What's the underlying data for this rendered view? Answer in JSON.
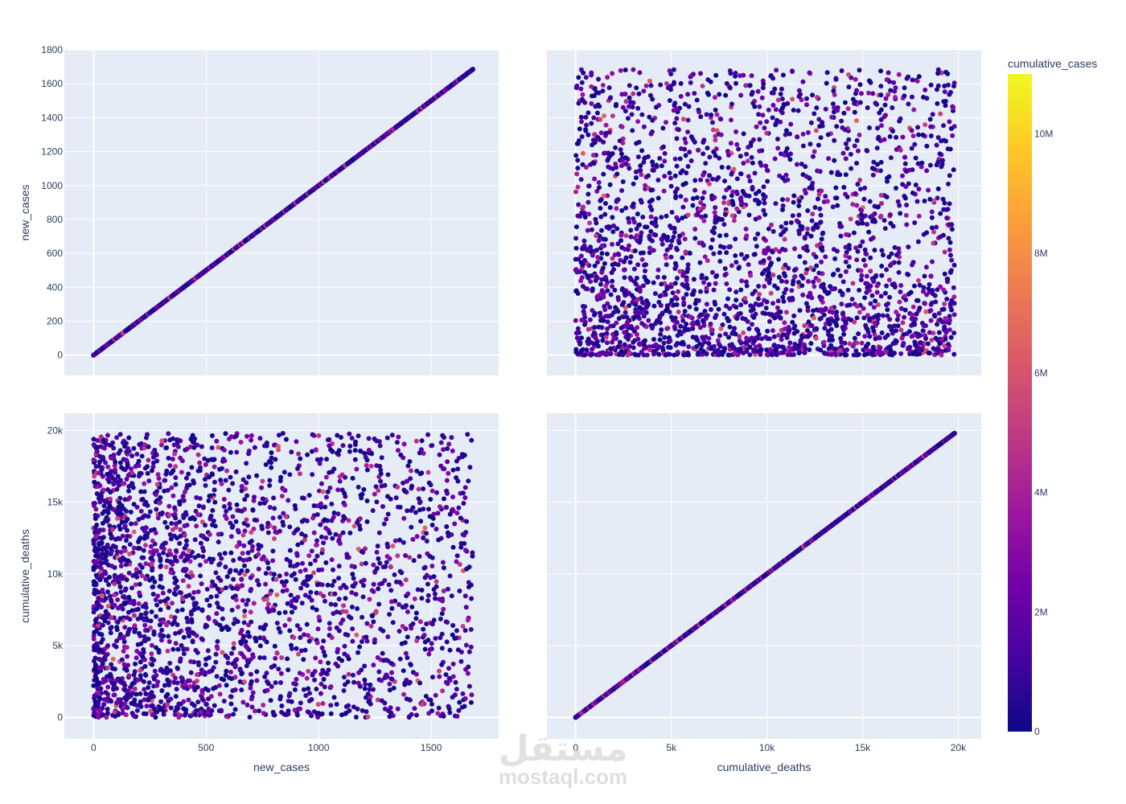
{
  "chart_data": {
    "type": "scatter",
    "subtype": "scatter-matrix",
    "dimensions": [
      "new_cases",
      "cumulative_deaths"
    ],
    "color_by": "cumulative_cases",
    "colorbar": {
      "title": "cumulative_cases",
      "range": [
        0,
        11000000
      ],
      "ticks": [
        0,
        2000000,
        4000000,
        6000000,
        8000000,
        10000000
      ],
      "tick_labels": [
        "0",
        "2M",
        "4M",
        "6M",
        "8M",
        "10M"
      ],
      "colorscale": [
        "#0d0887",
        "#46039f",
        "#7201a8",
        "#9c179e",
        "#bd3786",
        "#d8576b",
        "#ed7953",
        "#fb9f3a",
        "#fdca26",
        "#f0f921"
      ]
    },
    "panels": [
      {
        "id": "new_cases-vs-new_cases",
        "xlabel": "",
        "ylabel": "new_cases",
        "xlim": [
          -130,
          1800
        ],
        "ylim": [
          -120,
          1800
        ],
        "xticks": [
          0,
          500,
          1000,
          1500
        ],
        "xtick_labels": [],
        "yticks": [
          0,
          200,
          400,
          600,
          800,
          1000,
          1200,
          1400,
          1600,
          1800
        ],
        "ytick_labels": [
          "0",
          "200",
          "400",
          "600",
          "800",
          "1000",
          "1200",
          "1400",
          "1600",
          "1800"
        ],
        "pattern": "diagonal",
        "x_range": [
          0,
          1685
        ]
      },
      {
        "id": "cumulative_deaths-vs-new_cases",
        "xlabel": "",
        "ylabel": "",
        "xlim": [
          -1500,
          21200
        ],
        "ylim": [
          -120,
          1800
        ],
        "xticks": [
          0,
          5000,
          10000,
          15000,
          20000
        ],
        "xtick_labels": [],
        "yticks": [
          0,
          200,
          400,
          600,
          800,
          1000,
          1200,
          1400,
          1600,
          1800
        ],
        "ytick_labels": [],
        "pattern": "dense-cloud",
        "x_range": [
          0,
          19800
        ],
        "y_range": [
          0,
          1685
        ]
      },
      {
        "id": "new_cases-vs-cumulative_deaths",
        "xlabel": "new_cases",
        "ylabel": "cumulative_deaths",
        "xlim": [
          -130,
          1800
        ],
        "ylim": [
          -1500,
          21200
        ],
        "xticks": [
          0,
          500,
          1000,
          1500
        ],
        "xtick_labels": [
          "0",
          "500",
          "1000",
          "1500"
        ],
        "yticks": [
          0,
          5000,
          10000,
          15000,
          20000
        ],
        "ytick_labels": [
          "0",
          "5k",
          "10k",
          "15k",
          "20k"
        ],
        "pattern": "dense-cloud",
        "x_range": [
          0,
          1685
        ],
        "y_range": [
          0,
          19800
        ]
      },
      {
        "id": "cumulative_deaths-vs-cumulative_deaths",
        "xlabel": "cumulative_deaths",
        "ylabel": "",
        "xlim": [
          -1500,
          21200
        ],
        "ylim": [
          -1500,
          21200
        ],
        "xticks": [
          0,
          5000,
          10000,
          15000,
          20000
        ],
        "xtick_labels": [
          "0",
          "5k",
          "10k",
          "15k",
          "20k"
        ],
        "yticks": [
          0,
          5000,
          10000,
          15000,
          20000
        ],
        "ytick_labels": [],
        "pattern": "diagonal",
        "x_range": [
          0,
          19800
        ]
      }
    ],
    "grid": true
  },
  "watermark": {
    "arabic": "مستقل",
    "latin": "mostaql.com"
  }
}
